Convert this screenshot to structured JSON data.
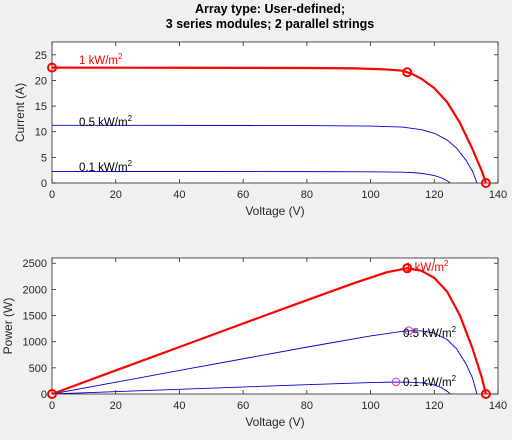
{
  "figure": {
    "title_line1": "Array type: User-defined;",
    "title_line2": "3 series modules; 2 parallel strings"
  },
  "colors": {
    "highlight": "#ff0000",
    "curve": "#0000cd",
    "mpp_marker": "#cc33cc",
    "axes_bg": "#ffffff",
    "figure_bg": "#f0f0f0"
  },
  "chart_data": [
    {
      "type": "line",
      "title": "",
      "xlabel": "Voltage (V)",
      "ylabel": "Current (A)",
      "xlim": [
        0,
        140
      ],
      "ylim": [
        0,
        27.5
      ],
      "xticks": [
        0,
        20,
        40,
        60,
        80,
        100,
        120,
        140
      ],
      "yticks": [
        0,
        5,
        10,
        15,
        20,
        25
      ],
      "grid": false,
      "series": [
        {
          "name": "1 kW/m2",
          "label_base": "1 kW/m",
          "label_sup": "2",
          "highlight": true,
          "points": [
            [
              0,
              22.5
            ],
            [
              20,
              22.49
            ],
            [
              40,
              22.48
            ],
            [
              60,
              22.46
            ],
            [
              80,
              22.43
            ],
            [
              95,
              22.35
            ],
            [
              105,
              22.15
            ],
            [
              110,
              21.9
            ],
            [
              113,
              21.3
            ],
            [
              116,
              20.3
            ],
            [
              120,
              18.5
            ],
            [
              124,
              15.8
            ],
            [
              128,
              11.8
            ],
            [
              132,
              6.6
            ],
            [
              135,
              2.2
            ],
            [
              136.2,
              0
            ]
          ],
          "markers": [
            [
              0,
              22.5
            ],
            [
              111.5,
              21.6
            ],
            [
              136.2,
              0
            ]
          ]
        },
        {
          "name": "0.5 kW/m2",
          "label_base": "0.5 kW/m",
          "label_sup": "2",
          "highlight": false,
          "points": [
            [
              0,
              11.25
            ],
            [
              40,
              11.24
            ],
            [
              80,
              11.2
            ],
            [
              100,
              11.1
            ],
            [
              110,
              10.9
            ],
            [
              116,
              10.4
            ],
            [
              120,
              9.7
            ],
            [
              124,
              8.4
            ],
            [
              127,
              6.8
            ],
            [
              130,
              4.4
            ],
            [
              132,
              2.3
            ],
            [
              133.4,
              0
            ]
          ],
          "markers": []
        },
        {
          "name": "0.1 kW/m2",
          "label_base": "0.1 kW/m",
          "label_sup": "2",
          "highlight": false,
          "points": [
            [
              0,
              2.25
            ],
            [
              40,
              2.24
            ],
            [
              80,
              2.22
            ],
            [
              100,
              2.18
            ],
            [
              110,
              2.1
            ],
            [
              114,
              2.0
            ],
            [
              117,
              1.8
            ],
            [
              120,
              1.45
            ],
            [
              122,
              1.05
            ],
            [
              124,
              0.45
            ],
            [
              125,
              0
            ]
          ],
          "markers": []
        }
      ]
    },
    {
      "type": "line",
      "title": "",
      "xlabel": "Voltage (V)",
      "ylabel": "Power (W)",
      "xlim": [
        0,
        140
      ],
      "ylim": [
        0,
        2600
      ],
      "xticks": [
        0,
        20,
        40,
        60,
        80,
        100,
        120,
        140
      ],
      "yticks": [
        0,
        500,
        1000,
        1500,
        2000,
        2500
      ],
      "grid": false,
      "series": [
        {
          "name": "1 kW/m2",
          "label_base": "1 kW/m",
          "label_sup": "2",
          "highlight": true,
          "points": [
            [
              0,
              0
            ],
            [
              20,
              450
            ],
            [
              40,
              899
            ],
            [
              60,
              1348
            ],
            [
              80,
              1794
            ],
            [
              95,
              2123
            ],
            [
              105,
              2326
            ],
            [
              111.5,
              2405
            ],
            [
              116,
              2355
            ],
            [
              120,
              2220
            ],
            [
              124,
              1959
            ],
            [
              128,
              1510
            ],
            [
              132,
              871
            ],
            [
              135,
              297
            ],
            [
              136.2,
              0
            ]
          ],
          "markers": [
            [
              0,
              0
            ],
            [
              111.5,
              2405
            ],
            [
              136.2,
              0
            ]
          ]
        },
        {
          "name": "0.5 kW/m2",
          "label_base": "0.5 kW/m",
          "label_sup": "2",
          "highlight": false,
          "points": [
            [
              0,
              0
            ],
            [
              40,
              450
            ],
            [
              80,
              896
            ],
            [
              100,
              1110
            ],
            [
              110,
              1199
            ],
            [
              113,
              1210
            ],
            [
              116,
              1206
            ],
            [
              120,
              1164
            ],
            [
              124,
              1042
            ],
            [
              127,
              864
            ],
            [
              130,
              572
            ],
            [
              132,
              304
            ],
            [
              133.4,
              0
            ]
          ],
          "markers": [
            [
              112,
              1210
            ]
          ]
        },
        {
          "name": "0.1 kW/m2",
          "label_base": "0.1 kW/m",
          "label_sup": "2",
          "highlight": false,
          "points": [
            [
              0,
              0
            ],
            [
              40,
              90
            ],
            [
              80,
              178
            ],
            [
              100,
              218
            ],
            [
              108,
              229
            ],
            [
              112,
              226
            ],
            [
              116,
              213
            ],
            [
              120,
              174
            ],
            [
              122,
              128
            ],
            [
              124,
              56
            ],
            [
              125,
              0
            ]
          ],
          "markers": [
            [
              108,
              230
            ]
          ]
        }
      ]
    }
  ]
}
